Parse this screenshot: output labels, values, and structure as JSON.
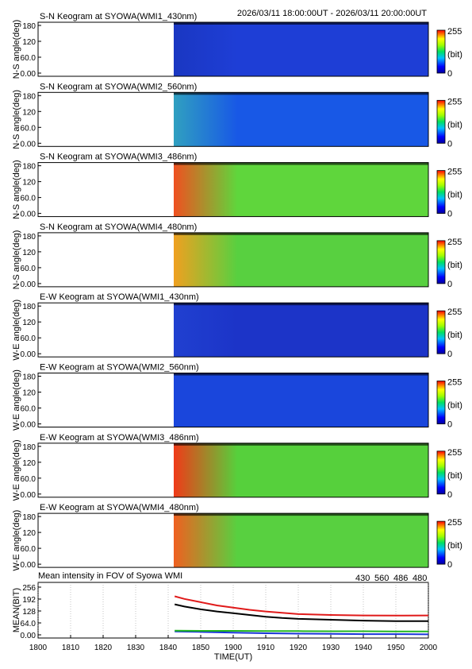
{
  "header": {
    "time_range": "2026/03/11 18:00:00UT - 2026/03/11 20:00:00UT"
  },
  "colorbar": {
    "max_label": "255",
    "unit_label": "(bit)",
    "min_label": "0"
  },
  "keograms": [
    {
      "title": "S-N Keogram at SYOWA(WMI1_430nm)",
      "ylabel": "N-S angle(deg)",
      "yticks": [
        "180",
        "120",
        "60.0",
        "0.00"
      ],
      "base": "#1e3ed6",
      "edge": "#1a37c2"
    },
    {
      "title": "S-N Keogram at SYOWA(WMI2_560nm)",
      "ylabel": "N-S angle(deg)",
      "yticks": [
        "180",
        "120",
        "60.0",
        "0.00"
      ],
      "base": "#1858e6",
      "edge": "#30a0c0"
    },
    {
      "title": "S-N Keogram at SYOWA(WMI3_486nm)",
      "ylabel": "N-S angle(deg)",
      "yticks": [
        "180",
        "120",
        "60.0",
        "0.00"
      ],
      "base": "#5fd63c",
      "edge": "#f05020"
    },
    {
      "title": "S-N Keogram at SYOWA(WMI4_480nm)",
      "ylabel": "N-S angle(deg)",
      "yticks": [
        "180",
        "120",
        "60.0",
        "0.00"
      ],
      "base": "#58d040",
      "edge": "#f0a020"
    },
    {
      "title": "E-W Keogram at SYOWA(WMI1_430nm)",
      "ylabel": "W-E angle(deg)",
      "yticks": [
        "180",
        "120",
        "60.0",
        "0.00"
      ],
      "base": "#1c34c8",
      "edge": "#2040d0"
    },
    {
      "title": "E-W Keogram at SYOWA(WMI2_560nm)",
      "ylabel": "W-E angle(deg)",
      "yticks": [
        "180",
        "120",
        "60.0",
        "0.00"
      ],
      "base": "#1a46dc",
      "edge": "#1a46dc"
    },
    {
      "title": "E-W Keogram at SYOWA(WMI3_486nm)",
      "ylabel": "W-E angle(deg)",
      "yticks": [
        "180",
        "120",
        "60.0",
        "0.00"
      ],
      "base": "#56d03c",
      "edge": "#f03a18"
    },
    {
      "title": "E-W Keogram at SYOWA(WMI4_480nm)",
      "ylabel": "W-E angle(deg)",
      "yticks": [
        "180",
        "120",
        "60.0",
        "0.00"
      ],
      "base": "#58d040",
      "edge": "#f06020"
    }
  ],
  "chart_data": {
    "type": "line",
    "title": "Mean intensity in FOV of Syowa WMI",
    "xlabel": "TIME(UT)",
    "ylabel": "MEAN(BIT)",
    "xlim": [
      1800,
      2000
    ],
    "ylim": [
      0,
      256
    ],
    "x_ticks": [
      "1800",
      "1810",
      "1820",
      "1830",
      "1840",
      "1850",
      "1900",
      "1910",
      "1920",
      "1930",
      "1940",
      "1950",
      "2000"
    ],
    "y_ticks": [
      "256",
      "192",
      "128",
      "64.0",
      "0.00"
    ],
    "legend_placement": "top-right",
    "series": [
      {
        "name": "430",
        "color": "#1a35d8",
        "x": [
          1842,
          1850,
          1900,
          1910,
          1920,
          1930,
          1940,
          1950,
          2000
        ],
        "values": [
          30,
          28,
          25,
          22,
          20,
          19,
          18,
          18,
          17
        ]
      },
      {
        "name": "560",
        "color": "#1fb51f",
        "x": [
          1842,
          1850,
          1900,
          1910,
          1920,
          1930,
          1940,
          1950,
          2000
        ],
        "values": [
          34,
          33,
          33,
          32,
          32,
          31,
          31,
          30,
          30
        ]
      },
      {
        "name": "486",
        "color": "#e01a1a",
        "x": [
          1842,
          1845,
          1850,
          1855,
          1900,
          1905,
          1910,
          1915,
          1920,
          1930,
          1940,
          1950,
          2000
        ],
        "values": [
          192,
          180,
          165,
          150,
          140,
          130,
          122,
          116,
          110,
          106,
          104,
          103,
          104
        ]
      },
      {
        "name": "480",
        "color": "#000000",
        "x": [
          1842,
          1845,
          1850,
          1855,
          1900,
          1905,
          1910,
          1915,
          1920,
          1930,
          1940,
          1950,
          2000
        ],
        "values": [
          155,
          145,
          132,
          122,
          114,
          106,
          98,
          92,
          88,
          84,
          80,
          78,
          78
        ]
      }
    ]
  }
}
